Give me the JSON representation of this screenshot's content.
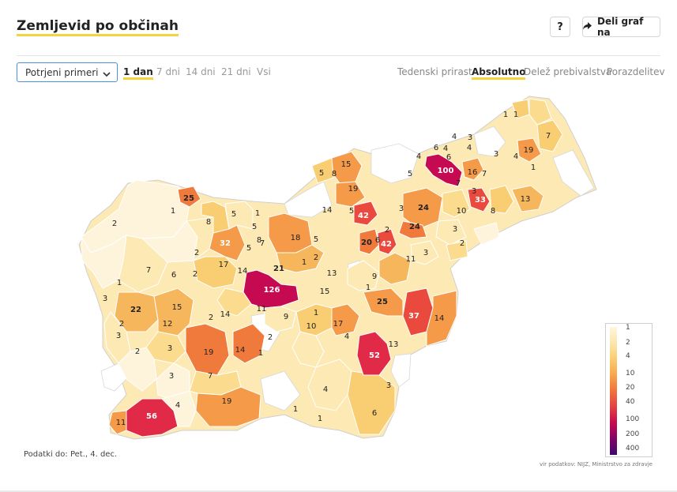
{
  "header": {
    "title": "Zemljevid po občinah"
  },
  "buttons": {
    "help": "?",
    "share": "Deli graf na"
  },
  "filter": {
    "selected": "Potrjeni primeri"
  },
  "periods": [
    "1 dan",
    "7 dni",
    "14 dni",
    "21 dni",
    "Vsi"
  ],
  "active_period": "1 dan",
  "modes": [
    "Tedenski prirast",
    "Absolutno",
    "Delež prebivalstva",
    "Porazdelitev"
  ],
  "active_mode": "Absolutno",
  "legend": {
    "labels": [
      "1",
      "2",
      "4",
      "10",
      "20",
      "40",
      "100",
      "200",
      "400"
    ]
  },
  "footer": {
    "data_date": "Podatki do: Pet., 4. dec.",
    "source": "vir podatkov: NIJZ, Ministrstvo za zdravje"
  },
  "colors": {
    "accent": "#f5d33c",
    "scale": [
      "#fff6dc",
      "#fbe6a8",
      "#f9cd71",
      "#f7a44c",
      "#f0733a",
      "#e33f43",
      "#c50a51",
      "#7d0466",
      "#3e0a6c"
    ]
  },
  "map": {
    "counts": [
      {
        "label": "126",
        "value": 126
      },
      {
        "label": "100",
        "value": 100
      },
      {
        "label": "56",
        "value": 56
      },
      {
        "label": "52",
        "value": 52
      },
      {
        "label": "42",
        "value": 42
      },
      {
        "label": "42",
        "value": 42
      },
      {
        "label": "37",
        "value": 37
      },
      {
        "label": "33",
        "value": 33
      },
      {
        "label": "32",
        "value": 32
      },
      {
        "label": "25",
        "value": 25
      },
      {
        "label": "25",
        "value": 25
      },
      {
        "label": "24",
        "value": 24
      },
      {
        "label": "24",
        "value": 24
      },
      {
        "label": "22",
        "value": 22
      },
      {
        "label": "21",
        "value": 21
      },
      {
        "label": "20",
        "value": 20
      },
      {
        "label": "19",
        "value": 19
      },
      {
        "label": "19",
        "value": 19
      },
      {
        "label": "19",
        "value": 19
      },
      {
        "label": "19",
        "value": 19
      },
      {
        "label": "18",
        "value": 18
      },
      {
        "label": "17",
        "value": 17
      },
      {
        "label": "17",
        "value": 17
      },
      {
        "label": "16",
        "value": 16
      },
      {
        "label": "15",
        "value": 15
      },
      {
        "label": "15",
        "value": 15
      },
      {
        "label": "15",
        "value": 15
      },
      {
        "label": "14",
        "value": 14
      },
      {
        "label": "14",
        "value": 14
      },
      {
        "label": "14",
        "value": 14
      },
      {
        "label": "14",
        "value": 14
      },
      {
        "label": "14",
        "value": 14
      },
      {
        "label": "13",
        "value": 13
      },
      {
        "label": "13",
        "value": 13
      },
      {
        "label": "13",
        "value": 13
      },
      {
        "label": "12",
        "value": 12
      },
      {
        "label": "11",
        "value": 11
      },
      {
        "label": "11",
        "value": 11
      },
      {
        "label": "11",
        "value": 11
      },
      {
        "label": "10",
        "value": 10
      },
      {
        "label": "10",
        "value": 10
      },
      {
        "label": "9",
        "value": 9
      },
      {
        "label": "9",
        "value": 9
      },
      {
        "label": "8",
        "value": 8
      },
      {
        "label": "8",
        "value": 8
      },
      {
        "label": "8",
        "value": 8
      },
      {
        "label": "8",
        "value": 8
      },
      {
        "label": "7",
        "value": 7
      },
      {
        "label": "7",
        "value": 7
      },
      {
        "label": "7",
        "value": 7
      },
      {
        "label": "7",
        "value": 7
      },
      {
        "label": "7",
        "value": 7
      },
      {
        "label": "7",
        "value": 7
      },
      {
        "label": "6",
        "value": 6
      },
      {
        "label": "6",
        "value": 6
      },
      {
        "label": "6",
        "value": 6
      },
      {
        "label": "6",
        "value": 6
      },
      {
        "label": "6",
        "value": 6
      },
      {
        "label": "5",
        "value": 5
      },
      {
        "label": "5",
        "value": 5
      },
      {
        "label": "5",
        "value": 5
      },
      {
        "label": "5",
        "value": 5
      },
      {
        "label": "5",
        "value": 5
      },
      {
        "label": "5",
        "value": 5
      },
      {
        "label": "5",
        "value": 5
      },
      {
        "label": "4",
        "value": 4
      },
      {
        "label": "4",
        "value": 4
      },
      {
        "label": "4",
        "value": 4
      },
      {
        "label": "4",
        "value": 4
      },
      {
        "label": "4",
        "value": 4
      },
      {
        "label": "4",
        "value": 4
      },
      {
        "label": "4",
        "value": 4
      },
      {
        "label": "4",
        "value": 4
      },
      {
        "label": "3",
        "value": 3
      },
      {
        "label": "3",
        "value": 3
      },
      {
        "label": "3",
        "value": 3
      },
      {
        "label": "3",
        "value": 3
      },
      {
        "label": "3",
        "value": 3
      },
      {
        "label": "3",
        "value": 3
      },
      {
        "label": "3",
        "value": 3
      },
      {
        "label": "3",
        "value": 3
      },
      {
        "label": "3",
        "value": 3
      },
      {
        "label": "3",
        "value": 3
      },
      {
        "label": "3",
        "value": 3
      },
      {
        "label": "2",
        "value": 2
      },
      {
        "label": "2",
        "value": 2
      },
      {
        "label": "2",
        "value": 2
      },
      {
        "label": "2",
        "value": 2
      },
      {
        "label": "2",
        "value": 2
      },
      {
        "label": "2",
        "value": 2
      },
      {
        "label": "2",
        "value": 2
      },
      {
        "label": "2",
        "value": 2
      },
      {
        "label": "2",
        "value": 2
      },
      {
        "label": "2",
        "value": 2
      },
      {
        "label": "1",
        "value": 1
      },
      {
        "label": "1",
        "value": 1
      },
      {
        "label": "1",
        "value": 1
      },
      {
        "label": "1",
        "value": 1
      },
      {
        "label": "1",
        "value": 1
      },
      {
        "label": "1",
        "value": 1
      },
      {
        "label": "1",
        "value": 1
      },
      {
        "label": "1",
        "value": 1
      },
      {
        "label": "1",
        "value": 1
      },
      {
        "label": "1",
        "value": 1
      },
      {
        "label": "1",
        "value": 1
      },
      {
        "label": "1",
        "value": 1
      }
    ]
  }
}
